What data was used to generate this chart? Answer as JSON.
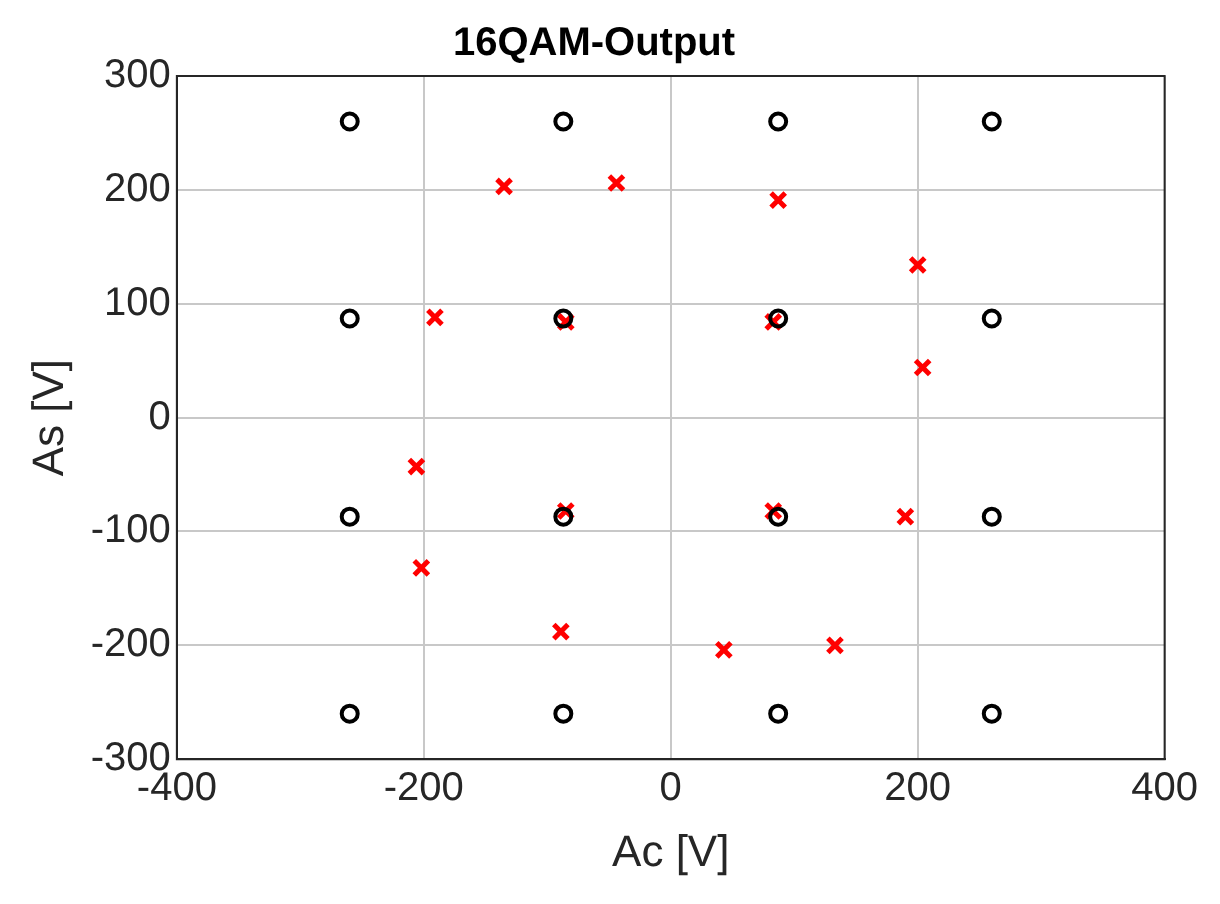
{
  "chart_data": {
    "type": "scatter",
    "title": "16QAM-Output",
    "xlabel": "Ac [V]",
    "ylabel": "As [V]",
    "xlim": [
      -400,
      400
    ],
    "xticks": [
      -400,
      -200,
      0,
      200,
      400
    ],
    "ylim": [
      -300,
      300
    ],
    "yticks": [
      -300,
      -200,
      -100,
      0,
      100,
      200,
      300
    ],
    "grid": true,
    "legend": false,
    "series": [
      {
        "color": "#000000",
        "marker": "circle",
        "x": [
          -260,
          -260,
          -260,
          -260,
          -87,
          -87,
          -87,
          -87,
          87,
          87,
          87,
          87,
          260,
          260,
          260,
          260
        ],
        "values": [
          260,
          87,
          -87,
          -260,
          260,
          87,
          -87,
          -260,
          260,
          87,
          -87,
          -260,
          260,
          87,
          -87,
          -260
        ]
      },
      {
        "color": "#ff0000",
        "marker": "cross",
        "x": [
          -135,
          -44,
          -191,
          -85,
          87,
          200,
          83,
          204,
          -206,
          -85,
          -202,
          -89,
          83,
          190,
          43,
          133
        ],
        "values": [
          203,
          206,
          88,
          84,
          191,
          134,
          84,
          44,
          -43,
          -82,
          -132,
          -188,
          -82,
          -87,
          -204,
          -200
        ]
      }
    ]
  }
}
